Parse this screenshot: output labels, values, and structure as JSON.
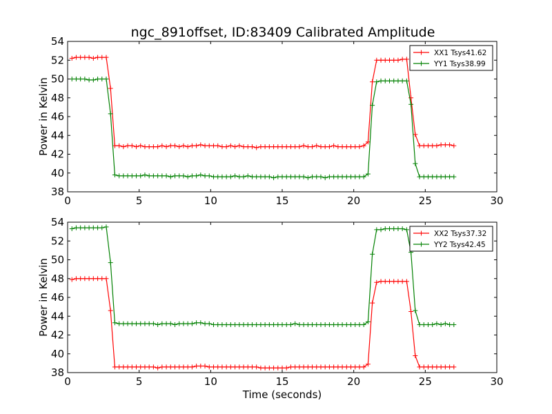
{
  "title": "ngc_891offset, ID:83409 Calibrated Amplitude",
  "colors": {
    "red": "#ff0000",
    "green": "#008000"
  },
  "chart_data": [
    {
      "type": "line",
      "ylabel": "Power in Kelvin",
      "xlabel": "",
      "xlim": [
        0,
        30
      ],
      "ylim": [
        38,
        54
      ],
      "xticks": [
        0,
        5,
        10,
        15,
        20,
        25,
        30
      ],
      "yticks": [
        38,
        40,
        42,
        44,
        46,
        48,
        50,
        52,
        54
      ],
      "grid": false,
      "legend_position": "top-right",
      "legend": [
        "XX1 Tsys41.62",
        "YY1 Tsys38.99"
      ],
      "series": [
        {
          "name": "XX1 Tsys41.62",
          "color": "#ff0000",
          "x": [
            0.3,
            0.6,
            0.9,
            1.2,
            1.5,
            1.8,
            2.1,
            2.4,
            2.7,
            3.0,
            3.3,
            3.6,
            3.9,
            4.2,
            4.5,
            4.8,
            5.1,
            5.4,
            5.7,
            6.0,
            6.3,
            6.6,
            6.9,
            7.2,
            7.5,
            7.8,
            8.1,
            8.4,
            8.7,
            9.0,
            9.3,
            9.6,
            9.9,
            10.2,
            10.5,
            10.8,
            11.1,
            11.4,
            11.7,
            12.0,
            12.3,
            12.6,
            12.9,
            13.2,
            13.5,
            13.8,
            14.1,
            14.4,
            14.7,
            15.0,
            15.3,
            15.6,
            15.9,
            16.2,
            16.5,
            16.8,
            17.1,
            17.4,
            17.7,
            18.0,
            18.3,
            18.6,
            18.9,
            19.2,
            19.5,
            19.8,
            20.1,
            20.4,
            20.7,
            21.0,
            21.3,
            21.6,
            21.9,
            22.2,
            22.5,
            22.8,
            23.1,
            23.4,
            23.7,
            24.0,
            24.3,
            24.6,
            24.9,
            25.2,
            25.5,
            25.8,
            26.1,
            26.4,
            26.7,
            27.0
          ],
          "y": [
            52.2,
            52.3,
            52.3,
            52.3,
            52.3,
            52.2,
            52.3,
            52.3,
            52.3,
            49.0,
            42.9,
            42.9,
            42.8,
            42.9,
            42.9,
            42.8,
            42.9,
            42.8,
            42.8,
            42.8,
            42.8,
            42.9,
            42.8,
            42.9,
            42.9,
            42.8,
            42.9,
            42.8,
            42.9,
            42.9,
            43.0,
            42.9,
            42.9,
            42.9,
            42.9,
            42.8,
            42.8,
            42.9,
            42.8,
            42.9,
            42.8,
            42.8,
            42.8,
            42.7,
            42.8,
            42.8,
            42.8,
            42.8,
            42.8,
            42.8,
            42.8,
            42.8,
            42.8,
            42.8,
            42.9,
            42.8,
            42.8,
            42.9,
            42.8,
            42.8,
            42.8,
            42.9,
            42.8,
            42.8,
            42.8,
            42.8,
            42.8,
            42.8,
            42.9,
            43.3,
            49.7,
            52.0,
            52.0,
            52.0,
            52.0,
            52.0,
            52.0,
            52.1,
            52.1,
            48.0,
            44.1,
            42.9,
            42.9,
            42.9,
            42.9,
            42.9,
            43.0,
            43.0,
            43.0,
            42.9
          ]
        },
        {
          "name": "YY1 Tsys38.99",
          "color": "#008000",
          "x": [
            0.3,
            0.6,
            0.9,
            1.2,
            1.5,
            1.8,
            2.1,
            2.4,
            2.7,
            3.0,
            3.3,
            3.6,
            3.9,
            4.2,
            4.5,
            4.8,
            5.1,
            5.4,
            5.7,
            6.0,
            6.3,
            6.6,
            6.9,
            7.2,
            7.5,
            7.8,
            8.1,
            8.4,
            8.7,
            9.0,
            9.3,
            9.6,
            9.9,
            10.2,
            10.5,
            10.8,
            11.1,
            11.4,
            11.7,
            12.0,
            12.3,
            12.6,
            12.9,
            13.2,
            13.5,
            13.8,
            14.1,
            14.4,
            14.7,
            15.0,
            15.3,
            15.6,
            15.9,
            16.2,
            16.5,
            16.8,
            17.1,
            17.4,
            17.7,
            18.0,
            18.3,
            18.6,
            18.9,
            19.2,
            19.5,
            19.8,
            20.1,
            20.4,
            20.7,
            21.0,
            21.3,
            21.6,
            21.9,
            22.2,
            22.5,
            22.8,
            23.1,
            23.4,
            23.7,
            24.0,
            24.3,
            24.6,
            24.9,
            25.2,
            25.5,
            25.8,
            26.1,
            26.4,
            26.7,
            27.0
          ],
          "y": [
            50.0,
            50.0,
            50.0,
            50.0,
            49.9,
            49.9,
            50.0,
            50.0,
            50.0,
            46.3,
            39.8,
            39.7,
            39.7,
            39.7,
            39.7,
            39.7,
            39.7,
            39.8,
            39.7,
            39.7,
            39.7,
            39.7,
            39.7,
            39.6,
            39.7,
            39.7,
            39.7,
            39.6,
            39.7,
            39.7,
            39.8,
            39.7,
            39.7,
            39.6,
            39.6,
            39.6,
            39.6,
            39.6,
            39.7,
            39.6,
            39.6,
            39.7,
            39.6,
            39.6,
            39.6,
            39.6,
            39.6,
            39.5,
            39.6,
            39.6,
            39.6,
            39.6,
            39.6,
            39.6,
            39.6,
            39.5,
            39.6,
            39.6,
            39.6,
            39.5,
            39.6,
            39.6,
            39.6,
            39.6,
            39.6,
            39.6,
            39.6,
            39.6,
            39.6,
            39.9,
            47.2,
            49.7,
            49.8,
            49.8,
            49.8,
            49.8,
            49.8,
            49.8,
            49.8,
            47.3,
            41.0,
            39.6,
            39.6,
            39.6,
            39.6,
            39.6,
            39.6,
            39.6,
            39.6,
            39.6
          ]
        }
      ]
    },
    {
      "type": "line",
      "ylabel": "Power in Kelvin",
      "xlabel": "Time (seconds)",
      "xlim": [
        0,
        30
      ],
      "ylim": [
        38,
        54
      ],
      "xticks": [
        0,
        5,
        10,
        15,
        20,
        25,
        30
      ],
      "yticks": [
        38,
        40,
        42,
        44,
        46,
        48,
        50,
        52,
        54
      ],
      "grid": false,
      "legend_position": "top-right",
      "legend": [
        "XX2 Tsys37.32",
        "YY2 Tsys42.45"
      ],
      "series": [
        {
          "name": "XX2 Tsys37.32",
          "color": "#ff0000",
          "x": [
            0.3,
            0.6,
            0.9,
            1.2,
            1.5,
            1.8,
            2.1,
            2.4,
            2.7,
            3.0,
            3.3,
            3.6,
            3.9,
            4.2,
            4.5,
            4.8,
            5.1,
            5.4,
            5.7,
            6.0,
            6.3,
            6.6,
            6.9,
            7.2,
            7.5,
            7.8,
            8.1,
            8.4,
            8.7,
            9.0,
            9.3,
            9.6,
            9.9,
            10.2,
            10.5,
            10.8,
            11.1,
            11.4,
            11.7,
            12.0,
            12.3,
            12.6,
            12.9,
            13.2,
            13.5,
            13.8,
            14.1,
            14.4,
            14.7,
            15.0,
            15.3,
            15.6,
            15.9,
            16.2,
            16.5,
            16.8,
            17.1,
            17.4,
            17.7,
            18.0,
            18.3,
            18.6,
            18.9,
            19.2,
            19.5,
            19.8,
            20.1,
            20.4,
            20.7,
            21.0,
            21.3,
            21.6,
            21.9,
            22.2,
            22.5,
            22.8,
            23.1,
            23.4,
            23.7,
            24.0,
            24.3,
            24.6,
            24.9,
            25.2,
            25.5,
            25.8,
            26.1,
            26.4,
            26.7,
            27.0
          ],
          "y": [
            47.9,
            48.0,
            48.0,
            48.0,
            48.0,
            48.0,
            48.0,
            48.0,
            48.0,
            44.6,
            38.6,
            38.6,
            38.6,
            38.6,
            38.6,
            38.6,
            38.6,
            38.6,
            38.6,
            38.6,
            38.5,
            38.6,
            38.6,
            38.6,
            38.6,
            38.6,
            38.6,
            38.6,
            38.6,
            38.7,
            38.7,
            38.7,
            38.6,
            38.6,
            38.6,
            38.6,
            38.6,
            38.6,
            38.6,
            38.6,
            38.6,
            38.6,
            38.6,
            38.6,
            38.5,
            38.5,
            38.5,
            38.5,
            38.5,
            38.5,
            38.5,
            38.6,
            38.6,
            38.6,
            38.6,
            38.6,
            38.6,
            38.6,
            38.6,
            38.6,
            38.6,
            38.6,
            38.6,
            38.6,
            38.6,
            38.6,
            38.6,
            38.6,
            38.6,
            38.9,
            45.4,
            47.6,
            47.7,
            47.7,
            47.7,
            47.7,
            47.7,
            47.7,
            47.7,
            44.5,
            39.8,
            38.6,
            38.6,
            38.6,
            38.6,
            38.6,
            38.6,
            38.6,
            38.6,
            38.6
          ]
        },
        {
          "name": "YY2 Tsys42.45",
          "color": "#008000",
          "x": [
            0.3,
            0.6,
            0.9,
            1.2,
            1.5,
            1.8,
            2.1,
            2.4,
            2.7,
            3.0,
            3.3,
            3.6,
            3.9,
            4.2,
            4.5,
            4.8,
            5.1,
            5.4,
            5.7,
            6.0,
            6.3,
            6.6,
            6.9,
            7.2,
            7.5,
            7.8,
            8.1,
            8.4,
            8.7,
            9.0,
            9.3,
            9.6,
            9.9,
            10.2,
            10.5,
            10.8,
            11.1,
            11.4,
            11.7,
            12.0,
            12.3,
            12.6,
            12.9,
            13.2,
            13.5,
            13.8,
            14.1,
            14.4,
            14.7,
            15.0,
            15.3,
            15.6,
            15.9,
            16.2,
            16.5,
            16.8,
            17.1,
            17.4,
            17.7,
            18.0,
            18.3,
            18.6,
            18.9,
            19.2,
            19.5,
            19.8,
            20.1,
            20.4,
            20.7,
            21.0,
            21.3,
            21.6,
            21.9,
            22.2,
            22.5,
            22.8,
            23.1,
            23.4,
            23.7,
            24.0,
            24.3,
            24.6,
            24.9,
            25.2,
            25.5,
            25.8,
            26.1,
            26.4,
            26.7,
            27.0
          ],
          "y": [
            53.3,
            53.4,
            53.4,
            53.4,
            53.4,
            53.4,
            53.4,
            53.4,
            53.5,
            49.7,
            43.3,
            43.2,
            43.2,
            43.2,
            43.2,
            43.2,
            43.2,
            43.2,
            43.2,
            43.2,
            43.1,
            43.2,
            43.2,
            43.2,
            43.1,
            43.2,
            43.2,
            43.2,
            43.2,
            43.3,
            43.3,
            43.2,
            43.2,
            43.1,
            43.1,
            43.1,
            43.1,
            43.1,
            43.1,
            43.1,
            43.1,
            43.1,
            43.1,
            43.1,
            43.1,
            43.1,
            43.1,
            43.1,
            43.1,
            43.1,
            43.1,
            43.1,
            43.2,
            43.1,
            43.1,
            43.1,
            43.1,
            43.1,
            43.1,
            43.1,
            43.1,
            43.1,
            43.1,
            43.1,
            43.1,
            43.1,
            43.1,
            43.1,
            43.1,
            43.4,
            50.6,
            53.2,
            53.2,
            53.3,
            53.3,
            53.3,
            53.3,
            53.3,
            53.2,
            50.8,
            44.6,
            43.1,
            43.1,
            43.1,
            43.1,
            43.2,
            43.1,
            43.2,
            43.1,
            43.1
          ]
        }
      ]
    }
  ]
}
